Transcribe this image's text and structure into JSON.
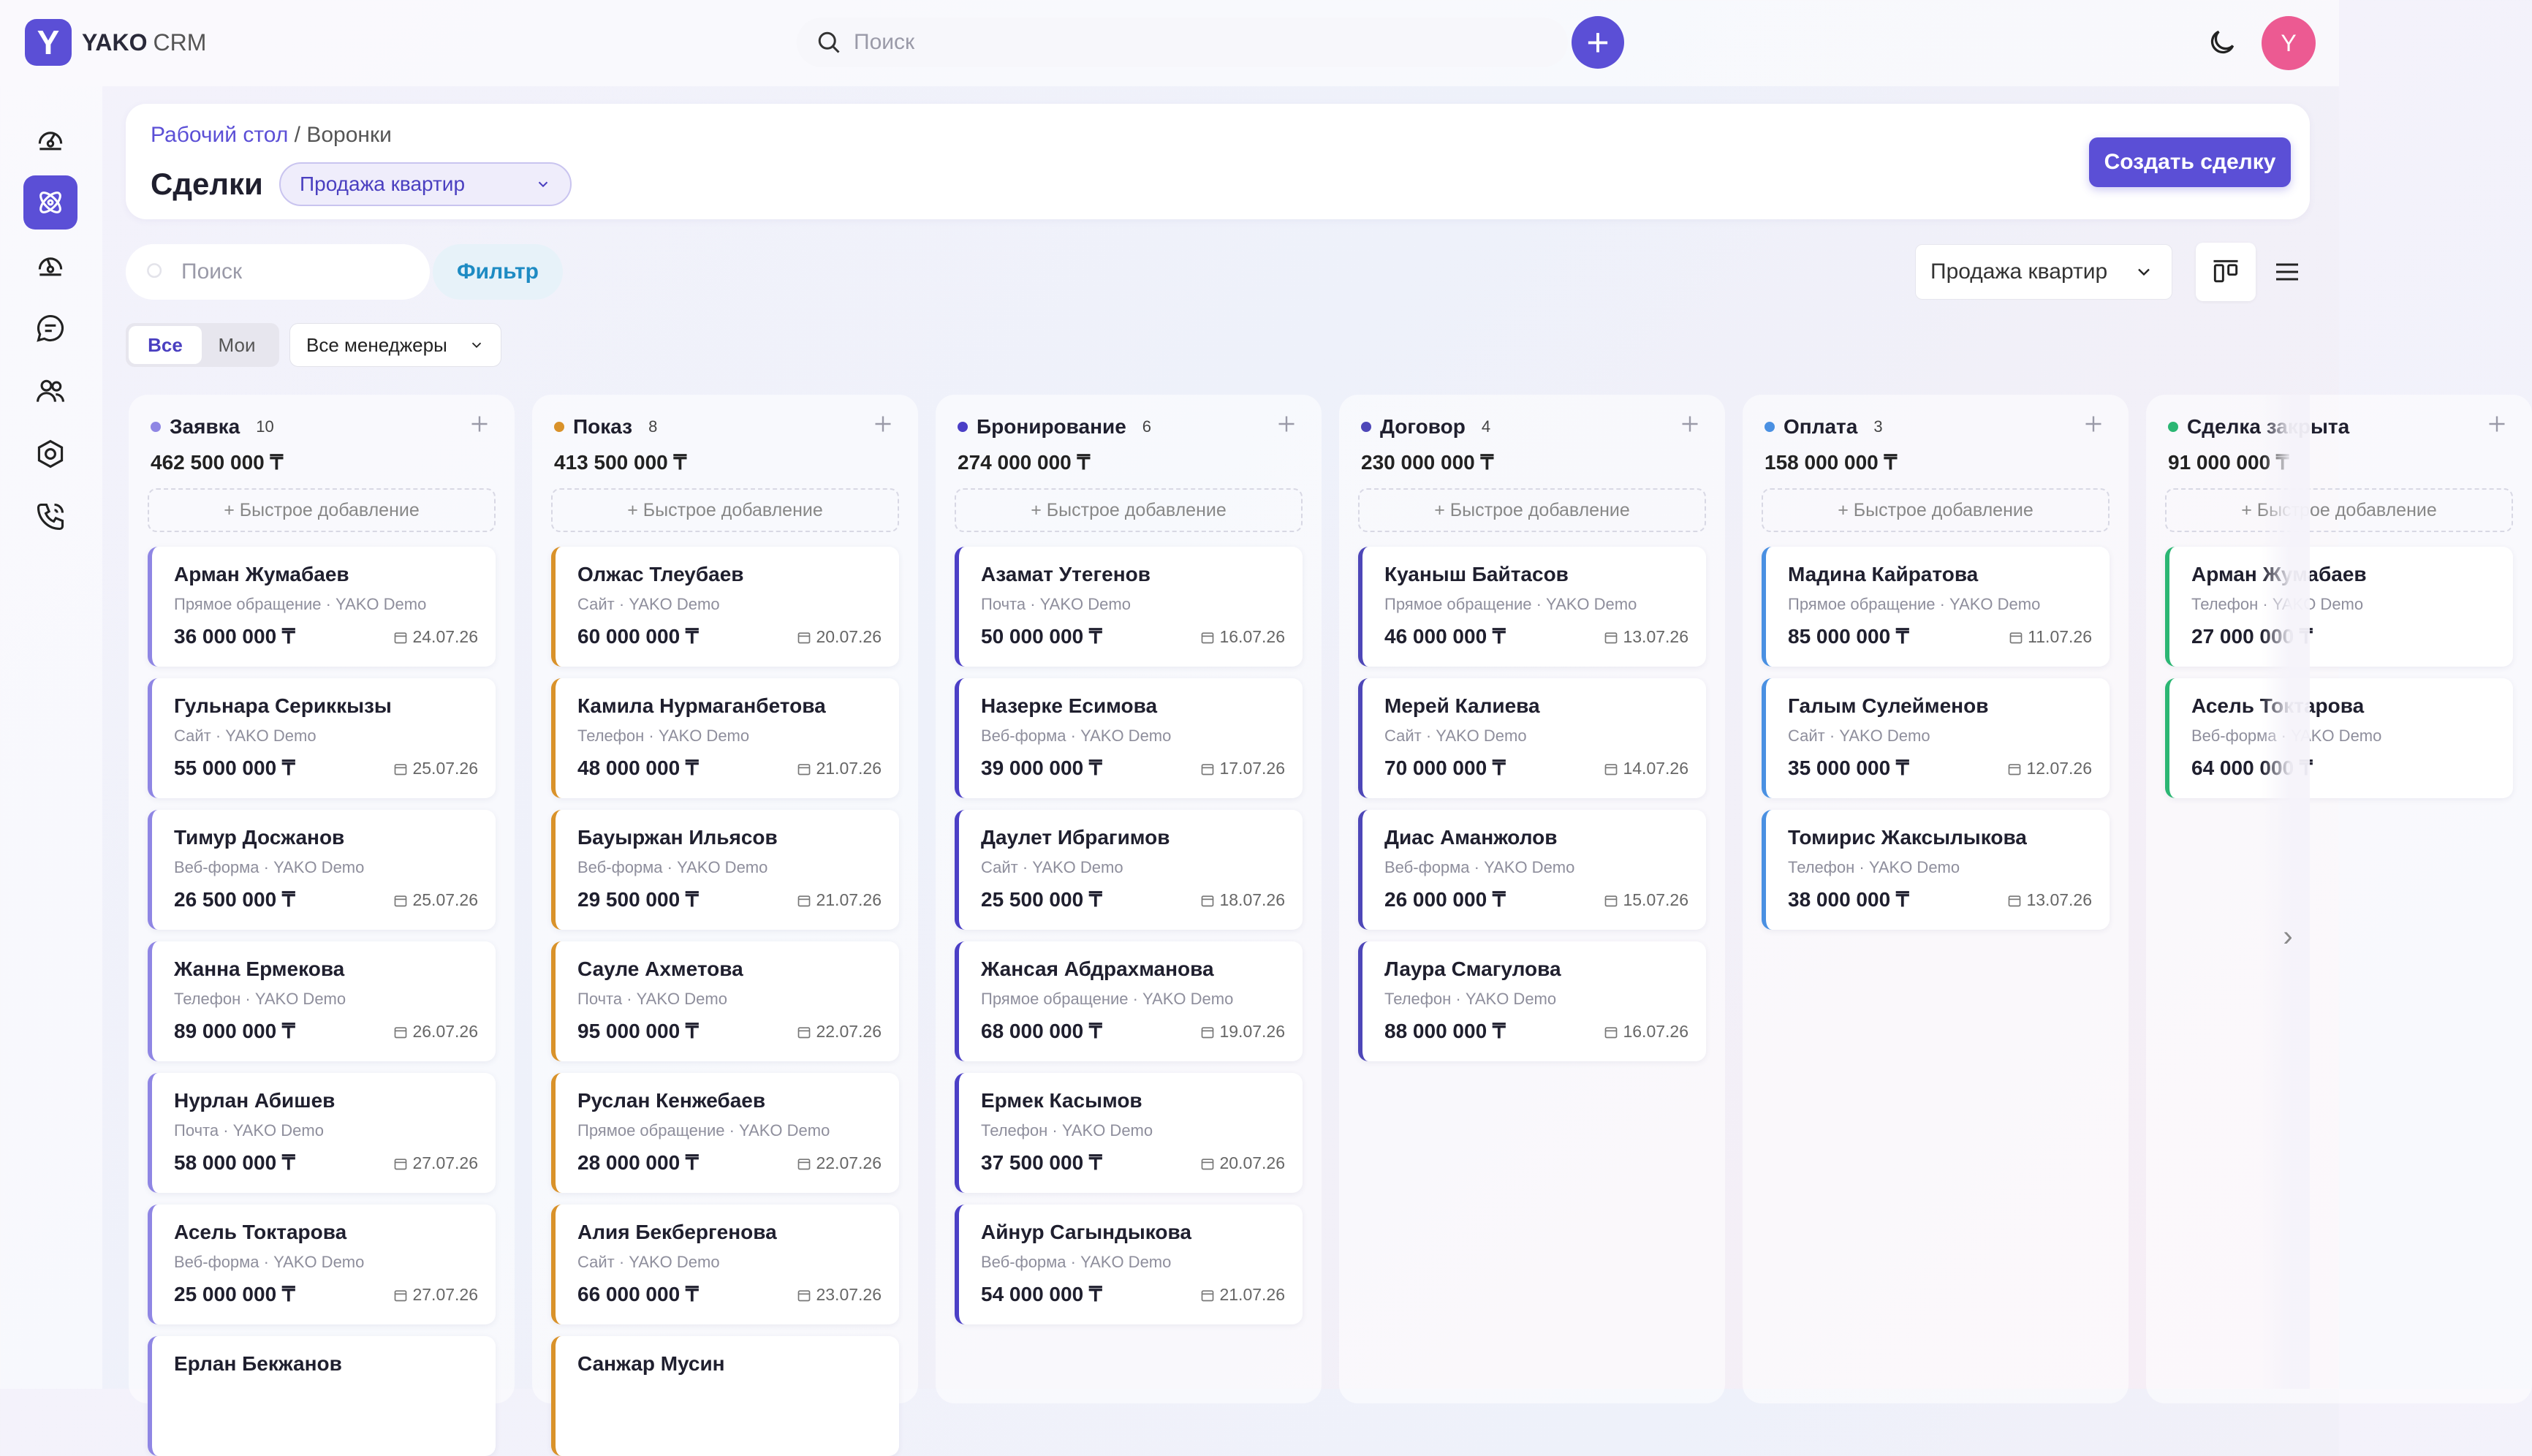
{
  "app": {
    "logo_letter": "Y",
    "brand_main": "YAKO",
    "brand_sub": "CRM",
    "accent_color": "#5b4fd6"
  },
  "topbar": {
    "search_placeholder": "Поиск",
    "avatar_letter": "Y"
  },
  "sidebar": {
    "items": [
      {
        "icon": "dashboard-icon",
        "active": false
      },
      {
        "icon": "deals-icon",
        "active": true
      },
      {
        "icon": "analytics-icon",
        "active": false
      },
      {
        "icon": "chat-icon",
        "active": false
      },
      {
        "icon": "contacts-icon",
        "active": false
      },
      {
        "icon": "settings-icon",
        "active": false
      },
      {
        "icon": "phone-icon",
        "active": false
      }
    ]
  },
  "header": {
    "breadcrumb_link": "Рабочий стол",
    "breadcrumb_sep": " / ",
    "breadcrumb_current": "Воронки",
    "title": "Сделки",
    "pipeline_select": "Продажа квартир",
    "create_button": "Создать сделку"
  },
  "toolbar": {
    "search_placeholder": "Поиск",
    "filter_label": "Фильтр",
    "view_select": "Продажа квартир",
    "seg_all": "Все",
    "seg_mine": "Мои",
    "managers_select": "Все менеджеры"
  },
  "quick_add_label": "+ Быстрое добавление",
  "columns": [
    {
      "name": "Заявка",
      "count": "10",
      "sum": "462 500 000 ₸",
      "color": "#8f86e4",
      "cards": [
        {
          "name": "Арман Жумабаев",
          "source": "Прямое обращение · YAKO Demo",
          "amount": "36 000 000 ₸",
          "date": "24.07.26"
        },
        {
          "name": "Гульнара Сериккызы",
          "source": "Сайт · YAKO Demo",
          "amount": "55 000 000 ₸",
          "date": "25.07.26"
        },
        {
          "name": "Тимур Досжанов",
          "source": "Веб-форма · YAKO Demo",
          "amount": "26 500 000 ₸",
          "date": "25.07.26"
        },
        {
          "name": "Жанна Ермекова",
          "source": "Телефон · YAKO Demo",
          "amount": "89 000 000 ₸",
          "date": "26.07.26"
        },
        {
          "name": "Нурлан Абишев",
          "source": "Почта · YAKO Demo",
          "amount": "58 000 000 ₸",
          "date": "27.07.26"
        },
        {
          "name": "Асель Токтарова",
          "source": "Веб-форма · YAKO Demo",
          "amount": "25 000 000 ₸",
          "date": "27.07.26"
        },
        {
          "name": "Ерлан Бекжанов",
          "source": "",
          "amount": "",
          "date": ""
        }
      ]
    },
    {
      "name": "Показ",
      "count": "8",
      "sum": "413 500 000 ₸",
      "color": "#d9922a",
      "cards": [
        {
          "name": "Олжас Тлеубаев",
          "source": "Сайт · YAKO Demo",
          "amount": "60 000 000 ₸",
          "date": "20.07.26"
        },
        {
          "name": "Камила Нурмаганбетова",
          "source": "Телефон · YAKO Demo",
          "amount": "48 000 000 ₸",
          "date": "21.07.26"
        },
        {
          "name": "Бауыржан Ильясов",
          "source": "Веб-форма · YAKO Demo",
          "amount": "29 500 000 ₸",
          "date": "21.07.26"
        },
        {
          "name": "Сауле Ахметова",
          "source": "Почта · YAKO Demo",
          "amount": "95 000 000 ₸",
          "date": "22.07.26"
        },
        {
          "name": "Руслан Кенжебаев",
          "source": "Прямое обращение · YAKO Demo",
          "amount": "28 000 000 ₸",
          "date": "22.07.26"
        },
        {
          "name": "Алия Бекбергенова",
          "source": "Сайт · YAKO Demo",
          "amount": "66 000 000 ₸",
          "date": "23.07.26"
        },
        {
          "name": "Санжар Мусин",
          "source": "",
          "amount": "",
          "date": ""
        }
      ]
    },
    {
      "name": "Бронирование",
      "count": "6",
      "sum": "274 000 000 ₸",
      "color": "#4b3fc6",
      "cards": [
        {
          "name": "Азамат Утегенов",
          "source": "Почта · YAKO Demo",
          "amount": "50 000 000 ₸",
          "date": "16.07.26"
        },
        {
          "name": "Назерке Есимова",
          "source": "Веб-форма · YAKO Demo",
          "amount": "39 000 000 ₸",
          "date": "17.07.26"
        },
        {
          "name": "Даулет Ибрагимов",
          "source": "Сайт · YAKO Demo",
          "amount": "25 500 000 ₸",
          "date": "18.07.26"
        },
        {
          "name": "Жансая Абдрахманова",
          "source": "Прямое обращение · YAKO Demo",
          "amount": "68 000 000 ₸",
          "date": "19.07.26"
        },
        {
          "name": "Ермек Касымов",
          "source": "Телефон · YAKO Demo",
          "amount": "37 500 000 ₸",
          "date": "20.07.26"
        },
        {
          "name": "Айнур Сагындыкова",
          "source": "Веб-форма · YAKO Demo",
          "amount": "54 000 000 ₸",
          "date": "21.07.26"
        }
      ]
    },
    {
      "name": "Договор",
      "count": "4",
      "sum": "230 000 000 ₸",
      "color": "#4e47b8",
      "cards": [
        {
          "name": "Куаныш Байтасов",
          "source": "Прямое обращение · YAKO Demo",
          "amount": "46 000 000 ₸",
          "date": "13.07.26"
        },
        {
          "name": "Мерей Калиева",
          "source": "Сайт · YAKO Demo",
          "amount": "70 000 000 ₸",
          "date": "14.07.26"
        },
        {
          "name": "Диас Аманжолов",
          "source": "Веб-форма · YAKO Demo",
          "amount": "26 000 000 ₸",
          "date": "15.07.26"
        },
        {
          "name": "Лаура Смагулова",
          "source": "Телефон · YAKO Demo",
          "amount": "88 000 000 ₸",
          "date": "16.07.26"
        }
      ]
    },
    {
      "name": "Оплата",
      "count": "3",
      "sum": "158 000 000 ₸",
      "color": "#4a90e2",
      "cards": [
        {
          "name": "Мадина Кайратова",
          "source": "Прямое обращение · YAKO Demo",
          "amount": "85 000 000 ₸",
          "date": "11.07.26"
        },
        {
          "name": "Галым Сулейменов",
          "source": "Сайт · YAKO Demo",
          "amount": "35 000 000 ₸",
          "date": "12.07.26"
        },
        {
          "name": "Томирис Жаксылыкова",
          "source": "Телефон · YAKO Demo",
          "amount": "38 000 000 ₸",
          "date": "13.07.26"
        }
      ]
    },
    {
      "name": "Сделка закрыта",
      "count": "",
      "sum": "91 000 000 ₸",
      "color": "#2bb673",
      "cards": [
        {
          "name": "Арман Жумабаев",
          "source": "Телефон · YAKO Demo",
          "amount": "27 000 000 ₸",
          "date": ""
        },
        {
          "name": "Асель Токтарова",
          "source": "Веб-форма · YAKO Demo",
          "amount": "64 000 000 ₸",
          "date": ""
        }
      ]
    }
  ]
}
